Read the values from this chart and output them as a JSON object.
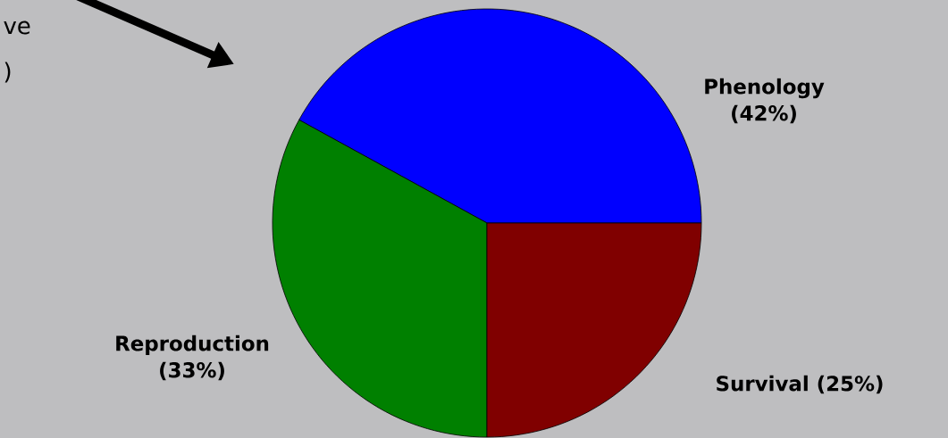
{
  "chart_data": {
    "type": "pie",
    "categories": [
      "Phenology",
      "Reproduction",
      "Survival"
    ],
    "values": [
      42,
      33,
      25
    ],
    "colors": [
      "#0000ff",
      "#008000",
      "#800000"
    ],
    "value_labels": [
      "(42%)",
      "(33%)",
      "(25%)"
    ],
    "annotations": [
      "ve",
      ")"
    ]
  }
}
